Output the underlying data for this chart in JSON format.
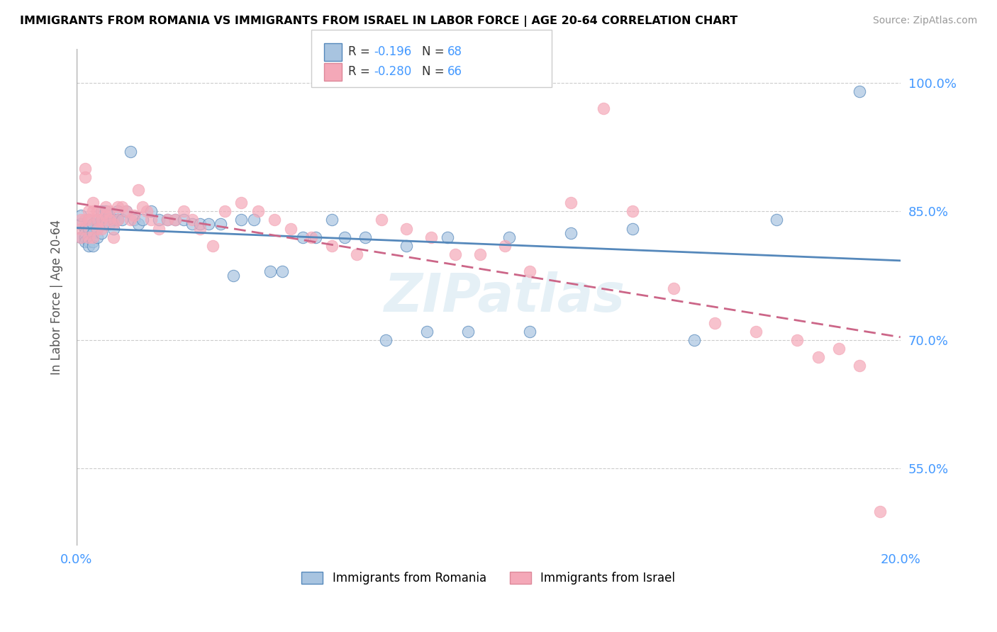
{
  "title": "IMMIGRANTS FROM ROMANIA VS IMMIGRANTS FROM ISRAEL IN LABOR FORCE | AGE 20-64 CORRELATION CHART",
  "source": "Source: ZipAtlas.com",
  "ylabel": "In Labor Force | Age 20-64",
  "xlim": [
    0.0,
    0.2
  ],
  "ylim": [
    0.46,
    1.04
  ],
  "yticks": [
    0.55,
    0.7,
    0.85,
    1.0
  ],
  "ytick_labels": [
    "55.0%",
    "70.0%",
    "85.0%",
    "100.0%"
  ],
  "xticks": [
    0.0,
    0.05,
    0.1,
    0.15,
    0.2
  ],
  "xtick_labels": [
    "0.0%",
    "",
    "",
    "",
    "20.0%"
  ],
  "r_romania": -0.196,
  "n_romania": 68,
  "r_israel": -0.28,
  "n_israel": 66,
  "color_romania": "#a8c4e0",
  "color_israel": "#f4a8b8",
  "trend_color_romania": "#5588bb",
  "trend_color_israel": "#cc6688",
  "watermark": "ZIPatlas",
  "romania_x": [
    0.001,
    0.001,
    0.001,
    0.002,
    0.002,
    0.002,
    0.002,
    0.003,
    0.003,
    0.003,
    0.003,
    0.003,
    0.004,
    0.004,
    0.004,
    0.004,
    0.005,
    0.005,
    0.005,
    0.006,
    0.006,
    0.006,
    0.007,
    0.007,
    0.007,
    0.008,
    0.008,
    0.009,
    0.009,
    0.01,
    0.01,
    0.011,
    0.012,
    0.013,
    0.014,
    0.015,
    0.016,
    0.018,
    0.02,
    0.022,
    0.024,
    0.026,
    0.028,
    0.03,
    0.032,
    0.035,
    0.038,
    0.04,
    0.043,
    0.047,
    0.05,
    0.055,
    0.058,
    0.062,
    0.065,
    0.07,
    0.075,
    0.08,
    0.085,
    0.09,
    0.095,
    0.105,
    0.11,
    0.12,
    0.135,
    0.15,
    0.17,
    0.19
  ],
  "romania_y": [
    0.82,
    0.835,
    0.845,
    0.83,
    0.825,
    0.82,
    0.815,
    0.84,
    0.83,
    0.82,
    0.815,
    0.81,
    0.835,
    0.825,
    0.815,
    0.81,
    0.84,
    0.83,
    0.82,
    0.85,
    0.84,
    0.825,
    0.85,
    0.84,
    0.835,
    0.845,
    0.835,
    0.84,
    0.83,
    0.85,
    0.84,
    0.84,
    0.85,
    0.92,
    0.84,
    0.835,
    0.84,
    0.85,
    0.84,
    0.84,
    0.84,
    0.84,
    0.835,
    0.835,
    0.835,
    0.835,
    0.775,
    0.84,
    0.84,
    0.78,
    0.78,
    0.82,
    0.82,
    0.84,
    0.82,
    0.82,
    0.7,
    0.81,
    0.71,
    0.82,
    0.71,
    0.82,
    0.71,
    0.825,
    0.83,
    0.7,
    0.84,
    0.99
  ],
  "israel_x": [
    0.001,
    0.001,
    0.001,
    0.002,
    0.002,
    0.002,
    0.003,
    0.003,
    0.003,
    0.004,
    0.004,
    0.004,
    0.005,
    0.005,
    0.005,
    0.006,
    0.006,
    0.007,
    0.007,
    0.008,
    0.008,
    0.009,
    0.009,
    0.01,
    0.01,
    0.011,
    0.012,
    0.013,
    0.014,
    0.015,
    0.016,
    0.017,
    0.018,
    0.02,
    0.022,
    0.024,
    0.026,
    0.028,
    0.03,
    0.033,
    0.036,
    0.04,
    0.044,
    0.048,
    0.052,
    0.057,
    0.062,
    0.068,
    0.074,
    0.08,
    0.086,
    0.092,
    0.098,
    0.104,
    0.11,
    0.12,
    0.128,
    0.135,
    0.145,
    0.155,
    0.165,
    0.175,
    0.18,
    0.185,
    0.19,
    0.195
  ],
  "israel_y": [
    0.84,
    0.83,
    0.82,
    0.9,
    0.89,
    0.84,
    0.85,
    0.84,
    0.82,
    0.86,
    0.85,
    0.82,
    0.85,
    0.84,
    0.83,
    0.84,
    0.83,
    0.855,
    0.845,
    0.85,
    0.84,
    0.835,
    0.82,
    0.855,
    0.84,
    0.855,
    0.85,
    0.84,
    0.845,
    0.875,
    0.855,
    0.85,
    0.84,
    0.83,
    0.84,
    0.84,
    0.85,
    0.84,
    0.83,
    0.81,
    0.85,
    0.86,
    0.85,
    0.84,
    0.83,
    0.82,
    0.81,
    0.8,
    0.84,
    0.83,
    0.82,
    0.8,
    0.8,
    0.81,
    0.78,
    0.86,
    0.97,
    0.85,
    0.76,
    0.72,
    0.71,
    0.7,
    0.68,
    0.69,
    0.67,
    0.5
  ]
}
